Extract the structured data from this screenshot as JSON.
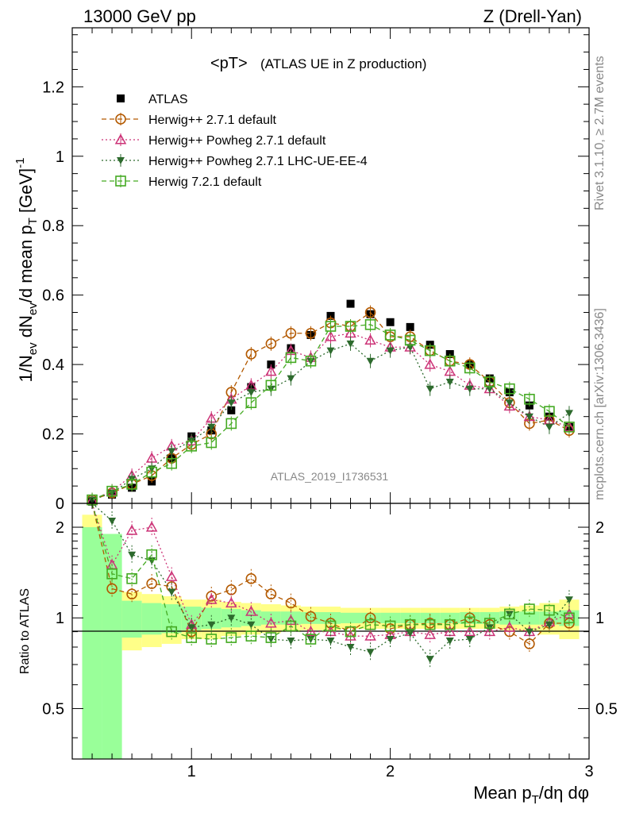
{
  "header": {
    "left": "13000 GeV pp",
    "right": "Z (Drell-Yan)"
  },
  "main_panel": {
    "plot_title": "<pT>",
    "plot_title_suffix": "(ATLAS UE in Z production)",
    "ylabel": "1/N_ev dN_ev/d mean p_T [GeV]^-1",
    "yticks": [
      "0",
      "0.2",
      "0.4",
      "0.6",
      "0.8",
      "1",
      "1.2"
    ],
    "watermark": "ATLAS_2019_I1736531"
  },
  "ratio_panel": {
    "ylabel": "Ratio to ATLAS",
    "yticks": [
      "0.5",
      "1",
      "2"
    ]
  },
  "x_axis": {
    "label": "Mean p_T/dη dφ",
    "ticks": [
      "1",
      "2",
      "3"
    ]
  },
  "side_text": {
    "rivet": "Rivet 3.1.10, ≥ 2.7M events",
    "mcplots": "mcplots.cern.ch [arXiv:1306.3436]"
  },
  "legend": [
    {
      "label": "ATLAS",
      "color": "#000000",
      "marker": "square-filled",
      "dash": "none"
    },
    {
      "label": "Herwig++ 2.7.1 default",
      "color": "#b35900",
      "marker": "circle-open",
      "dash": "dashed"
    },
    {
      "label": "Herwig++ Powheg 2.7.1 default",
      "color": "#cc3377",
      "marker": "triangle-up-open",
      "dash": "dotted"
    },
    {
      "label": "Herwig++ Powheg 2.7.1 LHC-UE-EE-4",
      "color": "#2d6a2d",
      "marker": "triangle-down-filled",
      "dash": "dotted"
    },
    {
      "label": "Herwig 7.2.1 default",
      "color": "#44aa22",
      "marker": "square-open",
      "dash": "dashed"
    }
  ],
  "chart_data": {
    "type": "scatter",
    "x": [
      0.5,
      0.6,
      0.7,
      0.8,
      0.9,
      1.0,
      1.1,
      1.2,
      1.3,
      1.4,
      1.5,
      1.6,
      1.7,
      1.8,
      1.9,
      2.0,
      2.1,
      2.2,
      2.3,
      2.4,
      2.5,
      2.6,
      2.7,
      2.8,
      2.9
    ],
    "xlim": [
      0.4,
      3.0
    ],
    "ylim": [
      0,
      1.37
    ],
    "ratio_ylim_log": [
      0.34,
      2.4
    ],
    "series": [
      {
        "name": "ATLAS",
        "values": [
          0.005,
          0.025,
          0.045,
          0.063,
          0.13,
          0.193,
          0.21,
          0.268,
          0.335,
          0.4,
          0.447,
          0.485,
          0.54,
          0.575,
          0.545,
          0.522,
          0.508,
          0.457,
          0.43,
          0.4,
          0.36,
          0.32,
          0.282,
          0.25,
          0.22
        ]
      },
      {
        "name": "Herwig++ 2.7.1 default",
        "values": [
          0.01,
          0.03,
          0.055,
          0.08,
          0.13,
          0.17,
          0.2,
          0.32,
          0.43,
          0.46,
          0.49,
          0.49,
          0.52,
          0.51,
          0.55,
          0.48,
          0.48,
          0.44,
          0.41,
          0.4,
          0.35,
          0.29,
          0.23,
          0.24,
          0.21
        ]
      },
      {
        "name": "Herwig++ Powheg 2.7.1 default",
        "values": [
          0.01,
          0.035,
          0.08,
          0.13,
          0.165,
          0.18,
          0.245,
          0.3,
          0.34,
          0.38,
          0.44,
          0.42,
          0.48,
          0.49,
          0.47,
          0.45,
          0.45,
          0.4,
          0.38,
          0.34,
          0.33,
          0.28,
          0.25,
          0.24,
          0.22
        ]
      },
      {
        "name": "Herwig++ Powheg 2.7.1 LHC-UE-EE-4",
        "values": [
          0.01,
          0.03,
          0.07,
          0.1,
          0.15,
          0.18,
          0.22,
          0.29,
          0.32,
          0.33,
          0.36,
          0.41,
          0.44,
          0.46,
          0.41,
          0.44,
          0.45,
          0.33,
          0.35,
          0.33,
          0.33,
          0.29,
          0.25,
          0.22,
          0.26
        ]
      },
      {
        "name": "Herwig 7.2.1 default",
        "values": [
          0.01,
          0.035,
          0.055,
          0.09,
          0.115,
          0.165,
          0.175,
          0.23,
          0.29,
          0.34,
          0.42,
          0.41,
          0.51,
          0.51,
          0.515,
          0.485,
          0.47,
          0.44,
          0.41,
          0.39,
          0.35,
          0.33,
          0.3,
          0.265,
          0.22
        ]
      }
    ],
    "ratios": [
      {
        "name": "Herwig++ 2.7.1 default",
        "values": [
          null,
          1.25,
          1.2,
          1.3,
          1.27,
          0.9,
          1.18,
          1.24,
          1.35,
          1.2,
          1.12,
          1.01,
          0.96,
          0.9,
          1.0,
          0.92,
          0.95,
          0.96,
          0.95,
          1.0,
          0.95,
          0.9,
          0.82,
          0.96,
          0.96
        ]
      },
      {
        "name": "Herwig++ Powheg 2.7.1 default",
        "values": [
          null,
          1.5,
          1.95,
          2.0,
          1.37,
          0.95,
          1.15,
          1.12,
          1.05,
          0.96,
          0.98,
          0.9,
          0.9,
          0.87,
          0.87,
          0.88,
          0.9,
          0.88,
          0.9,
          0.9,
          0.9,
          0.93,
          0.9,
          0.97,
          1.03
        ]
      },
      {
        "name": "Herwig++ Powheg 2.7.1 LHC-UE-EE-4",
        "values": [
          null,
          2.1,
          1.62,
          1.55,
          1.22,
          0.93,
          0.95,
          1.0,
          0.95,
          0.85,
          0.84,
          0.85,
          0.84,
          0.8,
          0.77,
          0.85,
          0.89,
          0.73,
          0.84,
          0.85,
          0.93,
          1.03,
          0.9,
          0.95,
          1.15
        ]
      },
      {
        "name": "Herwig 7.2.1 default",
        "values": [
          null,
          1.4,
          1.35,
          1.62,
          0.9,
          0.86,
          0.85,
          0.86,
          0.87,
          0.86,
          0.94,
          0.85,
          0.94,
          0.9,
          0.95,
          0.94,
          0.95,
          0.95,
          0.95,
          0.97,
          0.96,
          1.03,
          1.07,
          1.06,
          1.0
        ]
      }
    ],
    "ratio_band_green_halfwidth": [
      1.0,
      0.9,
      0.14,
      0.12,
      0.11,
      0.09,
      0.08,
      0.07,
      0.06,
      0.05,
      0.05,
      0.045,
      0.045,
      0.04,
      0.04,
      0.04,
      0.04,
      0.04,
      0.04,
      0.045,
      0.045,
      0.05,
      0.05,
      0.05,
      0.06
    ],
    "ratio_band_yellow_halfwidth": [
      1.2,
      0.45,
      0.22,
      0.2,
      0.18,
      0.15,
      0.15,
      0.13,
      0.12,
      0.11,
      0.1,
      0.09,
      0.09,
      0.08,
      0.08,
      0.08,
      0.08,
      0.08,
      0.08,
      0.08,
      0.08,
      0.09,
      0.1,
      0.12,
      0.15
    ]
  }
}
